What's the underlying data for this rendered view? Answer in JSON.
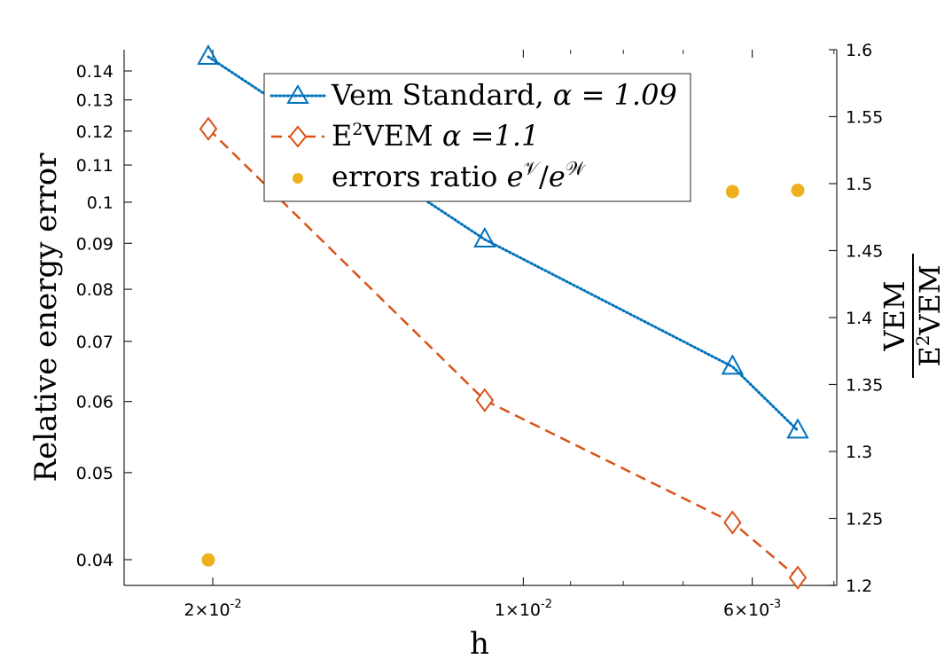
{
  "chart_data": {
    "type": "line",
    "xscale": "log",
    "xaxis_reversed": true,
    "xlabel": "h",
    "ylabel_left": "Relative energy error",
    "ylabel_right_num": "VEM",
    "ylabel_right_den_pre": "E",
    "ylabel_right_den_sup": "2",
    "ylabel_right_den_post": "VEM",
    "x_ticks": [
      {
        "value": 0.02,
        "mantissa": "2",
        "exp": "-2"
      },
      {
        "value": 0.01,
        "mantissa": "1",
        "exp": "-2"
      },
      {
        "value": 0.006,
        "mantissa": "6",
        "exp": "-3"
      }
    ],
    "x_tick_times": "×10",
    "y_left_ticks": [
      "0.04",
      "0.05",
      "0.06",
      "0.07",
      "0.08",
      "0.09",
      "0.1",
      "0.11",
      "0.12",
      "0.13",
      "0.14"
    ],
    "y_left_range": [
      0.0385,
      0.148
    ],
    "y_right_ticks": [
      "1.2",
      "1.25",
      "1.3",
      "1.35",
      "1.4",
      "1.45",
      "1.5",
      "1.55",
      "1.6"
    ],
    "y_right_range": [
      1.2,
      1.6
    ],
    "x_values": [
      0.0202,
      0.0109,
      0.00627,
      0.00542
    ],
    "series": [
      {
        "name": "Vem Standard",
        "alpha_label": "α = 1.09",
        "values": [
          0.1452,
          0.0909,
          0.0656,
          0.0557
        ],
        "color": "#0072BD",
        "marker": "triangle",
        "axis": "left"
      },
      {
        "name": "E2VEM",
        "alpha_label": "α =1.1",
        "values": [
          0.1207,
          0.0602,
          0.044,
          0.0382
        ],
        "color": "#D95319",
        "marker": "diamond",
        "axis": "left"
      },
      {
        "name": "errors ratio",
        "values": [
          1.219,
          null,
          1.494,
          1.495
        ],
        "color": "#EDB120",
        "marker": "dot",
        "axis": "right"
      }
    ],
    "legend": {
      "position": "top-center",
      "entry1_text": "Vem Standard, ",
      "entry1_alpha": "α = 1.09",
      "entry2_pre": "E",
      "entry2_sup": "2",
      "entry2_text": "VEM ",
      "entry2_alpha": "α =1.1",
      "entry3_text": "errors ratio ",
      "entry3_e1": "e",
      "entry3_sup1": "𝒱",
      "entry3_slash": "/",
      "entry3_e2": "e",
      "entry3_sup2": "𝒲"
    }
  }
}
